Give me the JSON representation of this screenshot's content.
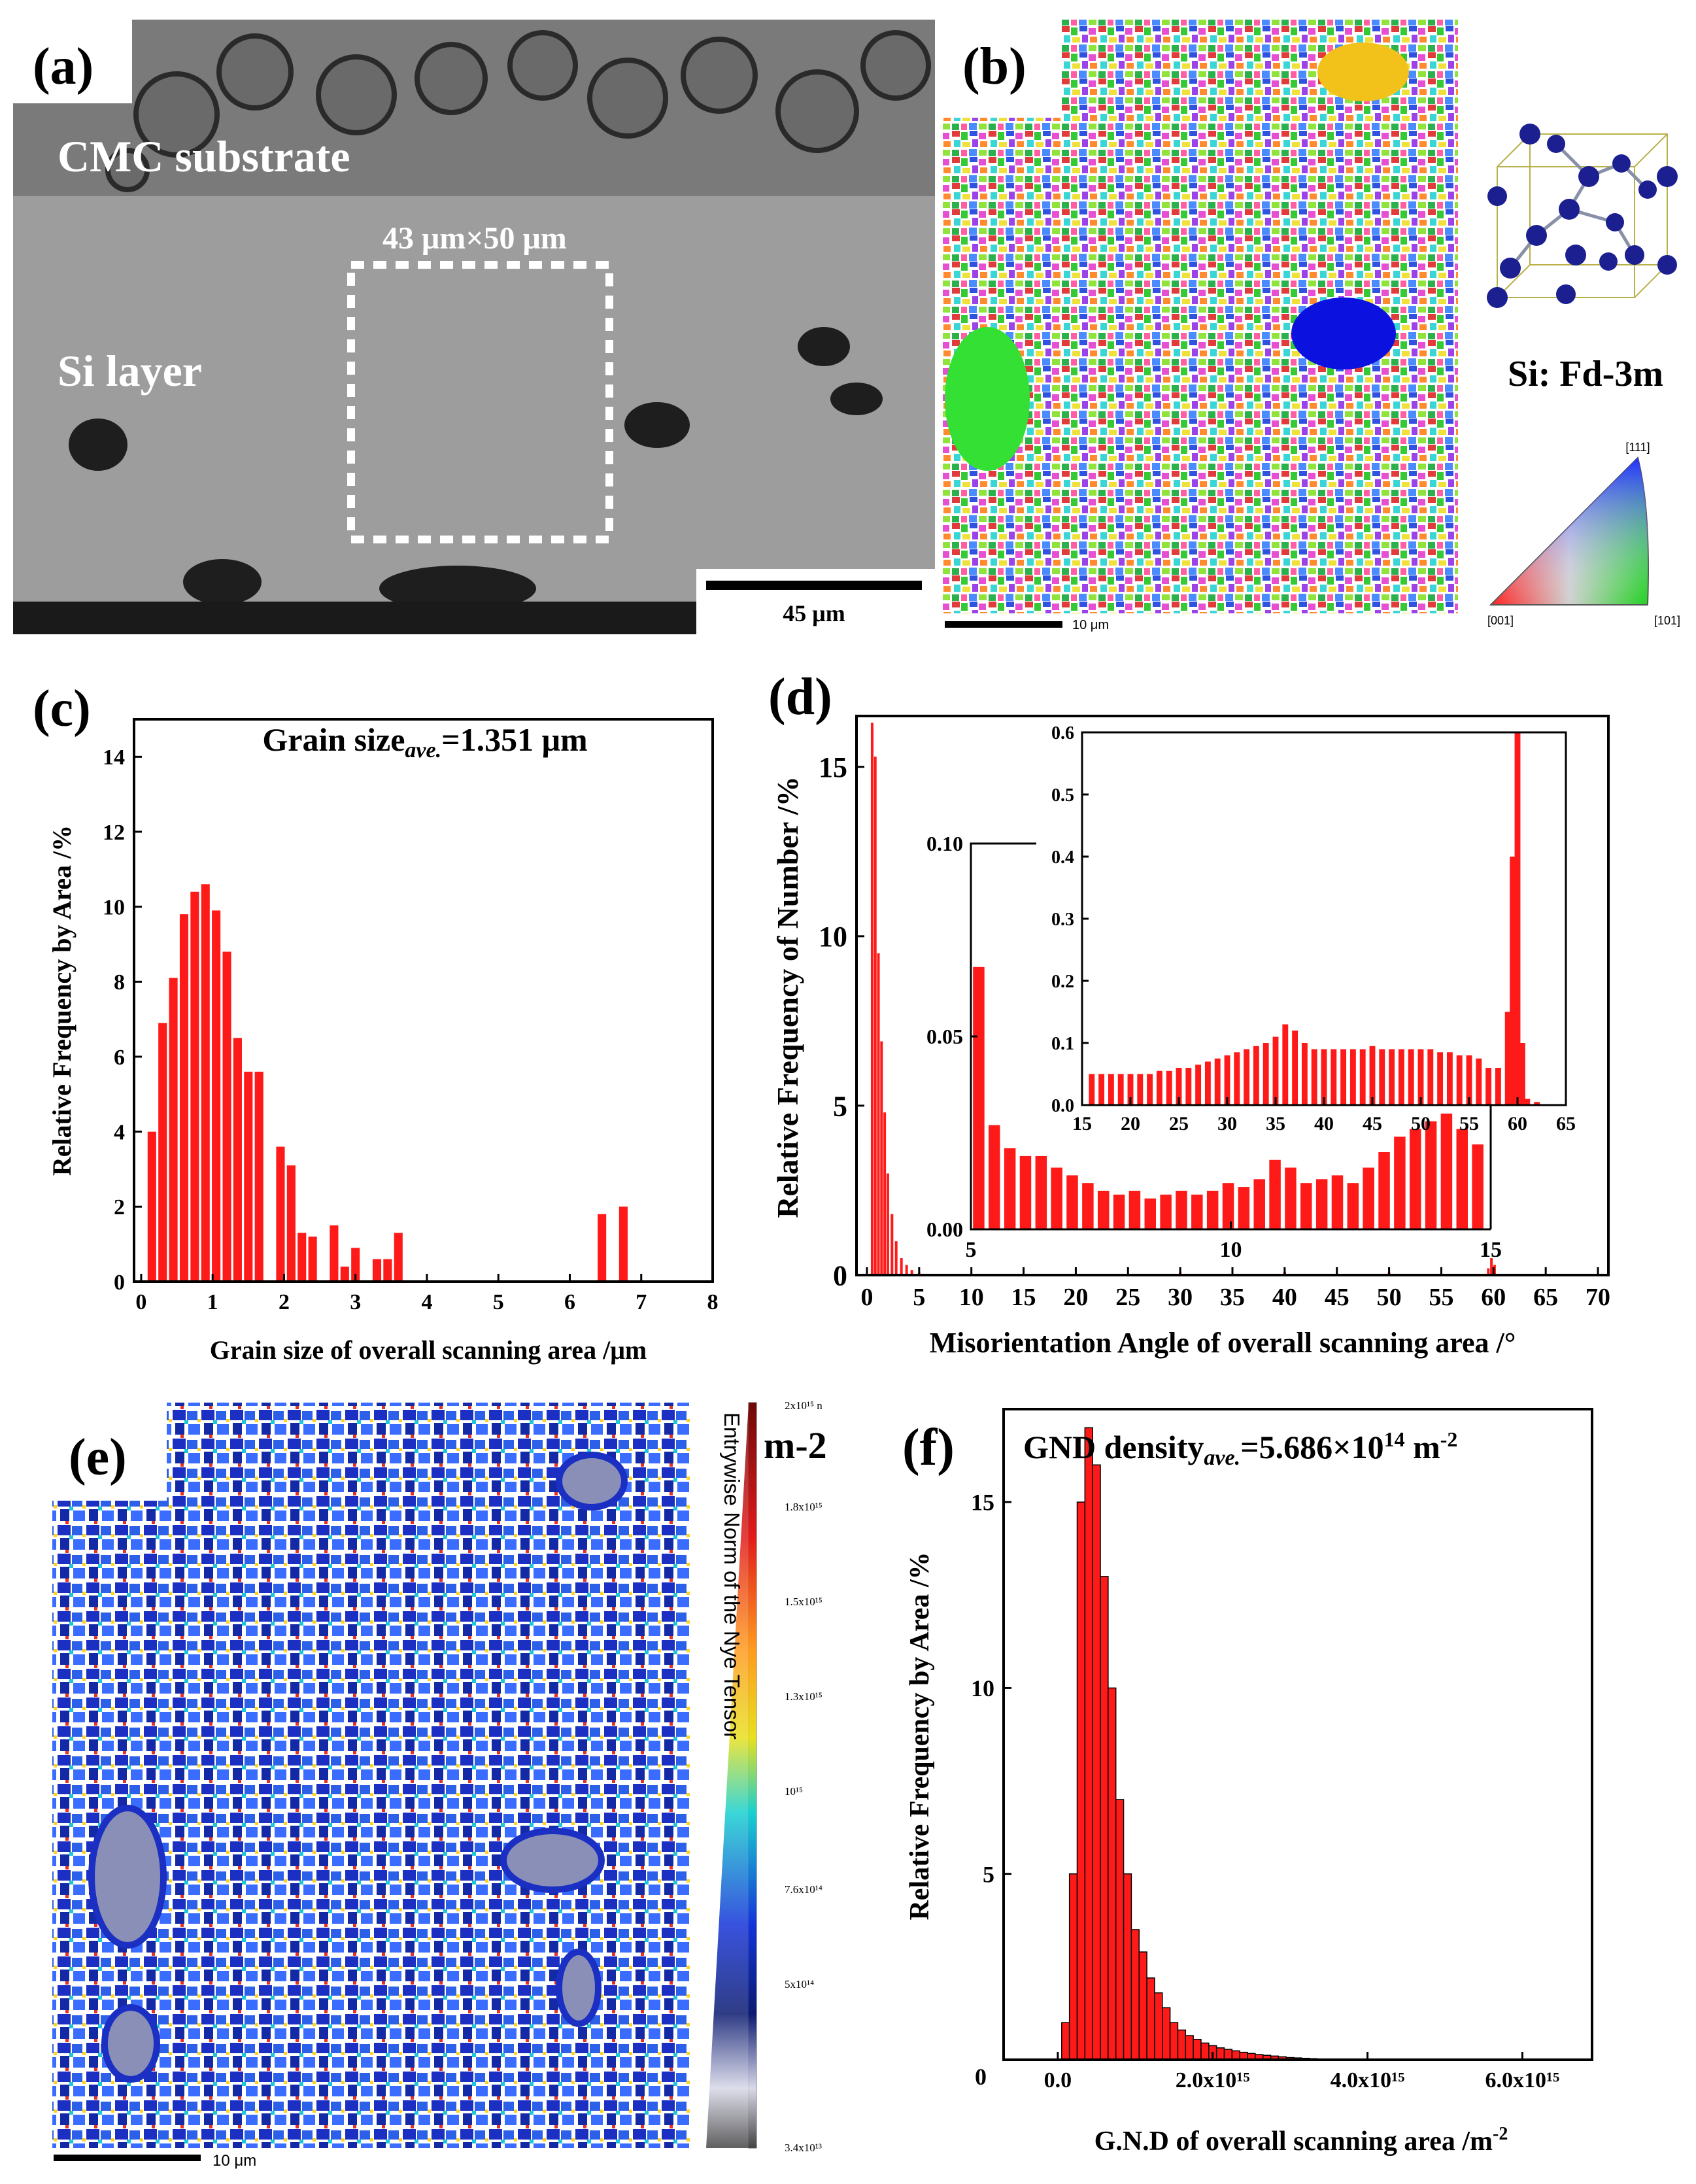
{
  "figure": {
    "panel_a": {
      "label": "(a)",
      "substrate_label": "CMC substrate",
      "layer_label": "Si layer",
      "roi_label": "43 μm×50 μm",
      "scale_bar": "45 μm"
    },
    "panel_b": {
      "label": "(b)",
      "scale_bar": "10 μm",
      "crystal_label": "Si: Fd-3m",
      "ipf_111": "[111]",
      "ipf_001": "[001]",
      "ipf_101": "[101]"
    },
    "panel_e": {
      "label": "(e)",
      "scale_bar": "10 μm",
      "colorbar_title": "Entrywise Norm of the Nye Tensor",
      "colorbar_unit": "m-2",
      "colorbar_ticks": [
        "2x10¹⁵ n",
        "1.8x10¹⁵",
        "1.5x10¹⁵",
        "1.3x10¹⁵",
        "10¹⁵",
        "7.6x10¹⁴",
        "5x10¹⁴",
        "3.4x10¹³"
      ]
    }
  },
  "chart_data": [
    {
      "id": "c",
      "type": "bar",
      "panel_label": "(c)",
      "title": "Grain size",
      "title_sub": "ave.",
      "title_value": "=1.351 μm",
      "xlabel": "Grain size of overall scanning area /μm",
      "ylabel": "Relative Frequency by Area /%",
      "xlim": [
        -0.1,
        8
      ],
      "ylim": [
        0,
        15
      ],
      "xticks": [
        0,
        1,
        2,
        3,
        4,
        5,
        6,
        7,
        8
      ],
      "yticks": [
        0,
        2,
        4,
        6,
        8,
        10,
        12,
        14
      ],
      "bar_width": 0.12,
      "x": [
        0.15,
        0.3,
        0.45,
        0.6,
        0.75,
        0.9,
        1.05,
        1.2,
        1.35,
        1.5,
        1.65,
        1.95,
        2.1,
        2.25,
        2.4,
        2.7,
        2.85,
        3.0,
        3.3,
        3.45,
        3.6,
        3.75,
        6.45,
        6.75
      ],
      "values": [
        4.0,
        6.9,
        8.1,
        9.8,
        10.4,
        10.6,
        9.9,
        8.8,
        6.5,
        5.6,
        5.6,
        3.6,
        3.1,
        1.3,
        1.2,
        1.5,
        0.4,
        0.9,
        0.6,
        0.6,
        1.3,
        0.0,
        1.8,
        2.0
      ]
    },
    {
      "id": "d",
      "type": "bar",
      "panel_label": "(d)",
      "xlabel": "Misorientation Angle of overall scanning area /°",
      "ylabel": "Relative Frequency of Number /%",
      "xlim": [
        -1,
        71
      ],
      "ylim": [
        0,
        16.5
      ],
      "xticks": [
        0,
        5,
        10,
        15,
        20,
        25,
        30,
        35,
        40,
        45,
        50,
        55,
        60,
        65,
        70
      ],
      "yticks": [
        0,
        5,
        10,
        15
      ],
      "x": [
        0.5,
        0.8,
        1.1,
        1.4,
        1.7,
        2.0,
        2.4,
        2.8,
        3.3,
        3.8,
        4.3,
        5.0,
        30.0,
        40.0,
        50.0,
        59.5,
        59.8,
        60.1
      ],
      "values": [
        16.3,
        15.3,
        9.5,
        6.9,
        4.8,
        3.0,
        1.8,
        1.0,
        0.5,
        0.3,
        0.15,
        0.07,
        0.08,
        0.1,
        0.08,
        0.2,
        0.5,
        0.3
      ],
      "inset_low": {
        "xlim": [
          5,
          15
        ],
        "ylim": [
          0,
          0.1
        ],
        "xticks": [
          5,
          10,
          15
        ],
        "yticks": [
          "0.00",
          "0.05",
          "0.10"
        ],
        "x": [
          5.15,
          5.45,
          5.75,
          6.05,
          6.35,
          6.65,
          6.95,
          7.25,
          7.55,
          7.85,
          8.15,
          8.45,
          8.75,
          9.05,
          9.35,
          9.65,
          9.95,
          10.25,
          10.55,
          10.85,
          11.15,
          11.45,
          11.75,
          12.05,
          12.35,
          12.65,
          12.95,
          13.25,
          13.55,
          13.85,
          14.15,
          14.45,
          14.75
        ],
        "values": [
          0.068,
          0.027,
          0.021,
          0.019,
          0.019,
          0.016,
          0.014,
          0.012,
          0.01,
          0.009,
          0.01,
          0.008,
          0.009,
          0.01,
          0.009,
          0.01,
          0.012,
          0.011,
          0.013,
          0.018,
          0.016,
          0.012,
          0.013,
          0.014,
          0.012,
          0.016,
          0.02,
          0.024,
          0.026,
          0.028,
          0.03,
          0.026,
          0.022
        ]
      },
      "inset_high": {
        "xlim": [
          15,
          65
        ],
        "ylim": [
          0,
          0.6
        ],
        "xticks": [
          15,
          20,
          25,
          30,
          35,
          40,
          45,
          50,
          55,
          60,
          65
        ],
        "yticks": [
          "0.0",
          "0.1",
          "0.2",
          "0.3",
          "0.4",
          "0.5",
          "0.6"
        ],
        "x": [
          16,
          17,
          18,
          19,
          20,
          21,
          22,
          23,
          24,
          25,
          26,
          27,
          28,
          29,
          30,
          31,
          32,
          33,
          34,
          35,
          36,
          37,
          38,
          39,
          40,
          41,
          42,
          43,
          44,
          45,
          46,
          47,
          48,
          49,
          50,
          51,
          52,
          53,
          54,
          55,
          56,
          57,
          58,
          59,
          59.5,
          60,
          60.5,
          61,
          62
        ],
        "values": [
          0.05,
          0.05,
          0.05,
          0.05,
          0.05,
          0.05,
          0.05,
          0.055,
          0.055,
          0.06,
          0.06,
          0.065,
          0.07,
          0.075,
          0.08,
          0.085,
          0.09,
          0.095,
          0.1,
          0.11,
          0.13,
          0.12,
          0.1,
          0.09,
          0.09,
          0.09,
          0.09,
          0.09,
          0.09,
          0.095,
          0.09,
          0.09,
          0.09,
          0.09,
          0.09,
          0.09,
          0.085,
          0.085,
          0.08,
          0.08,
          0.075,
          0.06,
          0.06,
          0.15,
          0.4,
          0.6,
          0.1,
          0.01,
          0.005
        ]
      }
    },
    {
      "id": "f",
      "type": "bar",
      "panel_label": "(f)",
      "title": "GND density",
      "title_sub": "ave.",
      "title_value": "=5.686×10",
      "title_exp": "14",
      "title_unit": " m",
      "title_unit_exp": "-2",
      "xlabel": "G.N.D of overall scanning area /m",
      "xlabel_exp": "-2",
      "ylabel": "Relative Frequency by Area /%",
      "xlim": [
        -700000000000000.0,
        6900000000000000.0
      ],
      "ylim": [
        0,
        17.5
      ],
      "xticks": [
        0,
        2000000000000000.0,
        4000000000000000.0,
        6000000000000000.0
      ],
      "xtick_labels": [
        "0.0",
        "2.0x10¹⁵",
        "4.0x10¹⁵",
        "6.0x10¹⁵"
      ],
      "yticks": [
        5,
        10,
        15
      ],
      "y_zero_label": "0",
      "bar_width": 100000000000000.0,
      "x": [
        100000000000000.0,
        200000000000000.0,
        300000000000000.0,
        400000000000000.0,
        500000000000000.0,
        600000000000000.0,
        700000000000000.0,
        800000000000000.0,
        900000000000000.0,
        1000000000000000.0,
        1100000000000000.0,
        1200000000000000.0,
        1300000000000000.0,
        1400000000000000.0,
        1500000000000000.0,
        1600000000000000.0,
        1700000000000000.0,
        1800000000000000.0,
        1900000000000000.0,
        2000000000000000.0,
        2100000000000000.0,
        2200000000000000.0,
        2300000000000000.0,
        2400000000000000.0,
        2500000000000000.0,
        2600000000000000.0,
        2700000000000000.0,
        2800000000000000.0,
        2900000000000000.0,
        3000000000000000.0,
        3100000000000000.0,
        3200000000000000.0,
        3300000000000000.0,
        3400000000000000.0,
        3500000000000000.0
      ],
      "values": [
        1.0,
        5.0,
        15.0,
        17.0,
        16.0,
        13.0,
        10.0,
        7.0,
        5.0,
        3.5,
        2.9,
        2.2,
        1.8,
        1.4,
        1.0,
        0.8,
        0.65,
        0.55,
        0.45,
        0.38,
        0.32,
        0.28,
        0.24,
        0.2,
        0.17,
        0.14,
        0.12,
        0.1,
        0.08,
        0.06,
        0.05,
        0.04,
        0.03,
        0.02,
        0.01
      ]
    }
  ]
}
